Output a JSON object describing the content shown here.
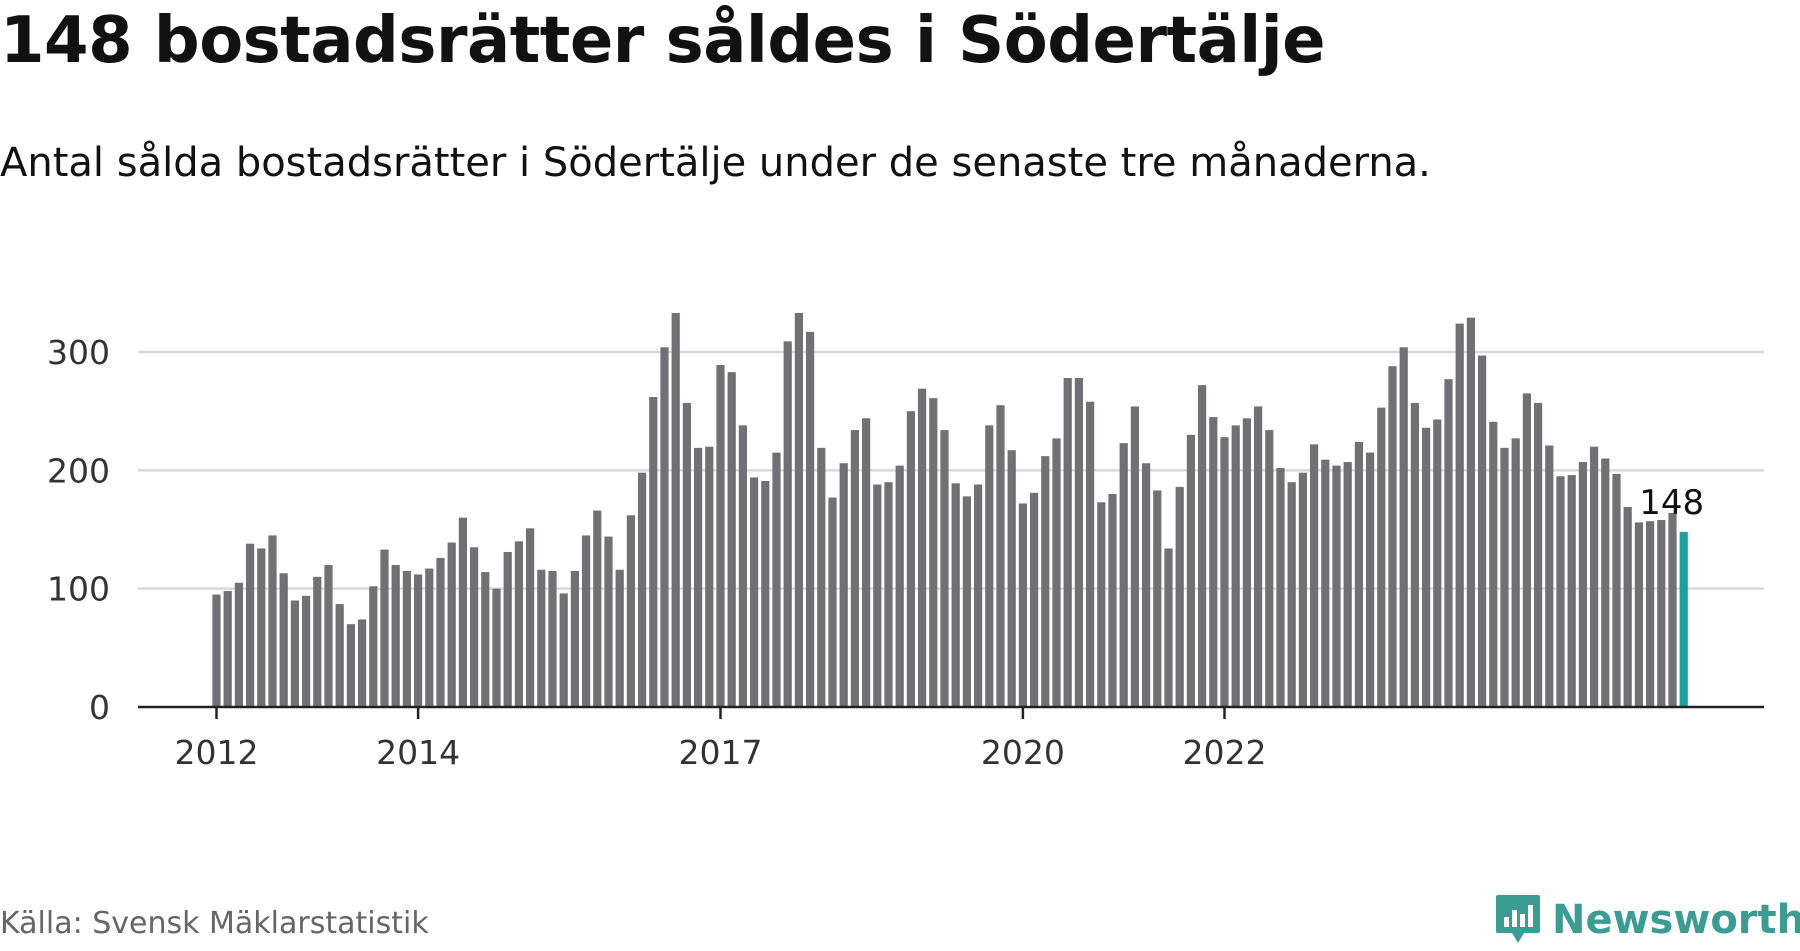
{
  "title": "148 bostadsrätter såldes i Södertälje",
  "subtitle": "Antal sålda bostadsrätter i Södertälje under de senaste tre månaderna.",
  "source": "Källa: Svensk Mäklarstatistik",
  "brand": {
    "name": "Newsworthy",
    "icon": "newsworthy-logo-icon",
    "color": "#3a9c92"
  },
  "colors": {
    "bar": "#717075",
    "highlight": "#1aa39a",
    "grid": "#d9d9d9",
    "axis": "#222222"
  },
  "chart_data": {
    "type": "bar",
    "ylim": [
      0,
      350
    ],
    "yticks": [
      0,
      100,
      200,
      300
    ],
    "xticks": [
      {
        "label": "2012",
        "index": 0
      },
      {
        "label": "2014",
        "index": 18
      },
      {
        "label": "2017",
        "index": 45
      },
      {
        "label": "2020",
        "index": 72
      },
      {
        "label": "2022",
        "index": 90
      }
    ],
    "values": [
      95,
      98,
      105,
      138,
      134,
      145,
      113,
      90,
      94,
      110,
      120,
      87,
      70,
      74,
      102,
      133,
      120,
      115,
      112,
      117,
      126,
      139,
      160,
      135,
      114,
      100,
      131,
      140,
      151,
      116,
      115,
      96,
      115,
      145,
      166,
      144,
      116,
      162,
      198,
      262,
      304,
      333,
      257,
      219,
      220,
      289,
      283,
      238,
      194,
      191,
      215,
      309,
      333,
      317,
      219,
      177,
      206,
      234,
      244,
      188,
      190,
      204,
      250,
      269,
      261,
      234,
      189,
      178,
      188,
      238,
      255,
      217,
      172,
      181,
      212,
      227,
      278,
      278,
      258,
      173,
      180,
      223,
      254,
      206,
      183,
      134,
      186,
      230,
      272,
      245,
      228,
      238,
      244,
      254,
      234,
      202,
      190,
      198,
      222,
      209,
      204,
      207,
      224,
      215,
      253,
      288,
      304,
      257,
      236,
      243,
      277,
      324,
      329,
      297,
      241,
      219,
      227,
      265,
      257,
      221,
      195,
      196,
      207,
      220,
      210,
      197,
      169,
      156,
      157,
      158,
      164,
      148
    ],
    "highlight_index": 131,
    "annotation": "148"
  }
}
